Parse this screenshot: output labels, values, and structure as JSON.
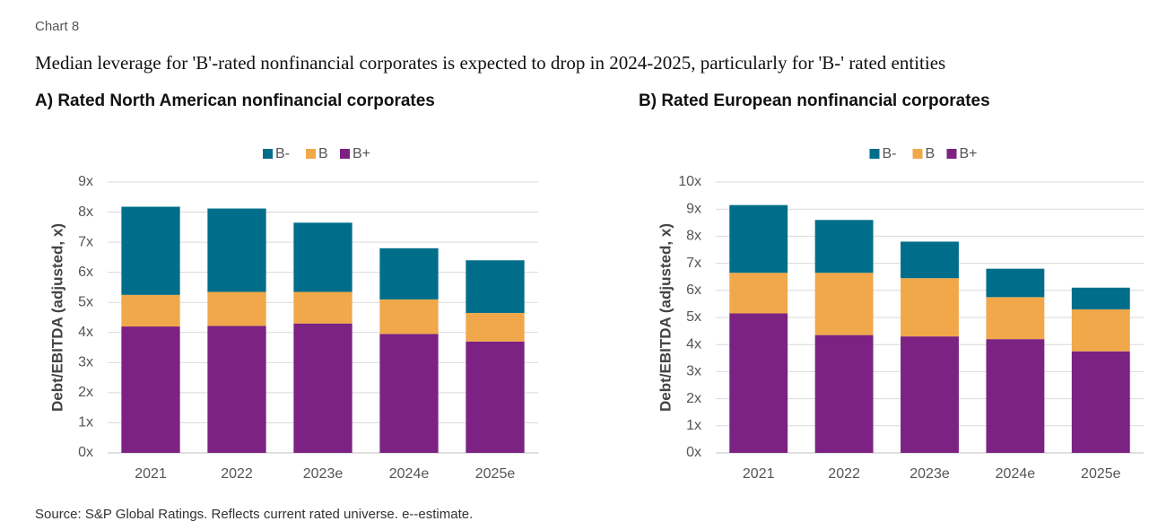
{
  "header": "Chart 8",
  "title": "Median leverage for 'B'-rated nonfinancial corporates is expected to drop in 2024-2025, particularly for 'B-' rated entities",
  "source": "Source: S&P Global Ratings. Reflects current rated universe. e--estimate.",
  "chart_data": [
    {
      "type": "bar",
      "stacked": true,
      "title": "A) Rated North American nonfinancial corporates",
      "y_label": "Debt/EBITDA (adjusted, x)",
      "categories": [
        "2021",
        "2022",
        "2023e",
        "2024e",
        "2025e"
      ],
      "series": [
        {
          "name": "B-",
          "color": "#006e8a",
          "values": [
            2.93,
            2.77,
            2.3,
            1.7,
            1.75
          ]
        },
        {
          "name": "B",
          "color": "#f0a84a",
          "values": [
            1.05,
            1.13,
            1.05,
            1.15,
            0.95
          ]
        },
        {
          "name": "B+",
          "color": "#7b2283",
          "values": [
            4.2,
            4.22,
            4.3,
            3.95,
            3.7
          ]
        }
      ],
      "ylim": [
        0,
        9
      ],
      "yticks": [
        {
          "value": 0,
          "label": "0x"
        },
        {
          "value": 1,
          "label": "1x"
        },
        {
          "value": 2,
          "label": "2x"
        },
        {
          "value": 3,
          "label": "3x"
        },
        {
          "value": 4,
          "label": "4x"
        },
        {
          "value": 5,
          "label": "5x"
        },
        {
          "value": 6,
          "label": "6x"
        },
        {
          "value": 7,
          "label": "7x"
        },
        {
          "value": 8,
          "label": "8x"
        },
        {
          "value": 9,
          "label": "9x"
        }
      ],
      "grid": true,
      "legend": "top"
    },
    {
      "type": "bar",
      "stacked": true,
      "title": "B) Rated European nonfinancial corporates",
      "y_label": "Debt/EBITDA (adjusted, x)",
      "categories": [
        "2021",
        "2022",
        "2023e",
        "2024e",
        "2025e"
      ],
      "series": [
        {
          "name": "B-",
          "color": "#006e8a",
          "values": [
            2.5,
            1.95,
            1.35,
            1.05,
            0.8
          ]
        },
        {
          "name": "B",
          "color": "#f0a84a",
          "values": [
            1.5,
            2.3,
            2.15,
            1.55,
            1.55
          ]
        },
        {
          "name": "B+",
          "color": "#7b2283",
          "values": [
            5.15,
            4.35,
            4.3,
            4.2,
            3.75
          ]
        }
      ],
      "ylim": [
        0,
        10
      ],
      "yticks": [
        {
          "value": 0,
          "label": "0x"
        },
        {
          "value": 1,
          "label": "1x"
        },
        {
          "value": 2,
          "label": "2x"
        },
        {
          "value": 3,
          "label": "3x"
        },
        {
          "value": 4,
          "label": "4x"
        },
        {
          "value": 5,
          "label": "5x"
        },
        {
          "value": 6,
          "label": "6x"
        },
        {
          "value": 7,
          "label": "7x"
        },
        {
          "value": 8,
          "label": "8x"
        },
        {
          "value": 9,
          "label": "9x"
        },
        {
          "value": 10,
          "label": "10x"
        }
      ],
      "grid": true,
      "legend": "top"
    }
  ]
}
